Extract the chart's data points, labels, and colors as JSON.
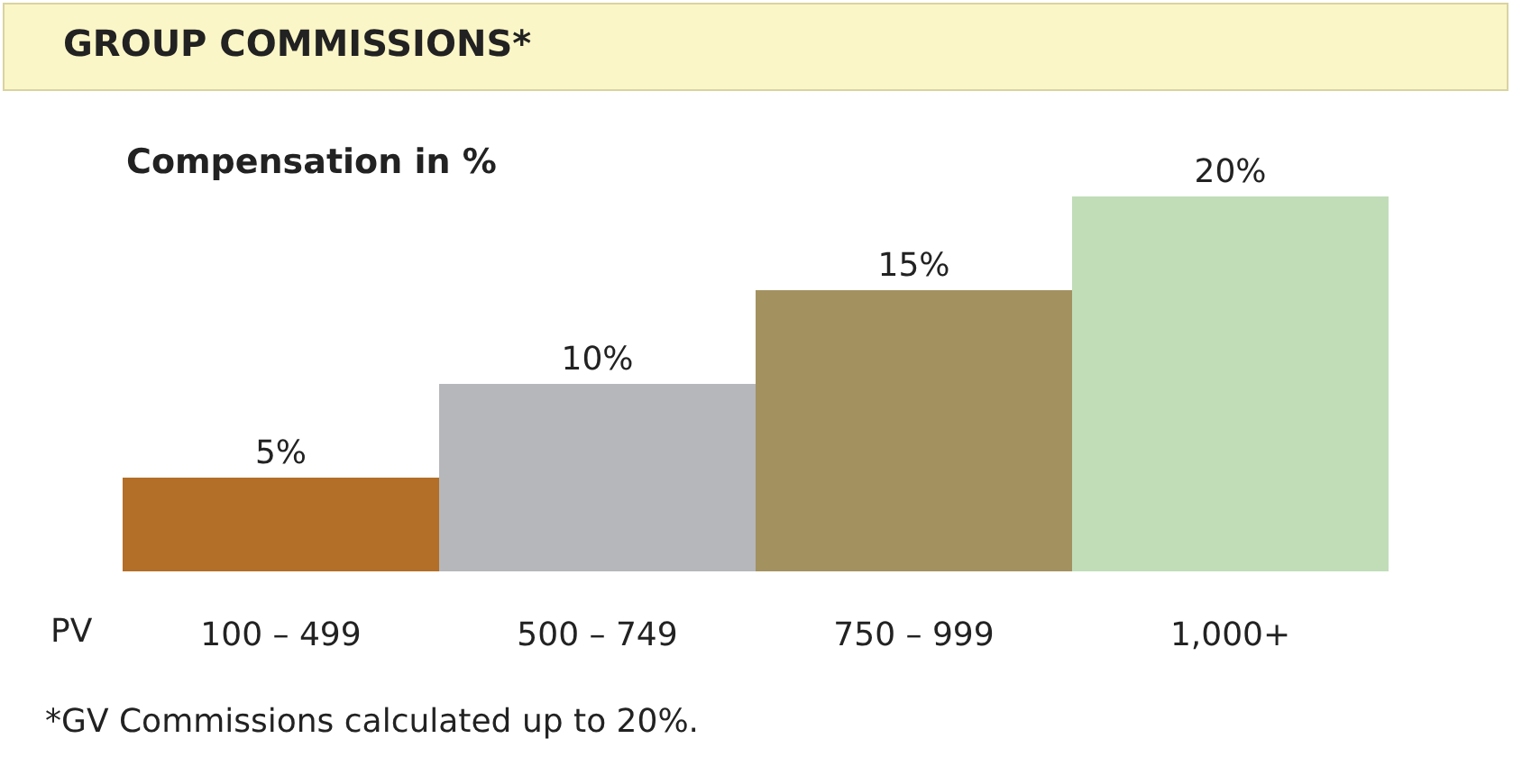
{
  "chart_data": {
    "type": "bar",
    "title": "GROUP COMMISSIONS*",
    "subtitle": "Compensation in %",
    "xlabel": "PV",
    "categories": [
      "100 – 499",
      "500 – 749",
      "750 – 999",
      "1,000+"
    ],
    "values": [
      5,
      10,
      15,
      20
    ],
    "colors": [
      "#b36f27",
      "#b6b7ba",
      "#a39160",
      "#c0ddb8"
    ],
    "value_labels": [
      "5%",
      "10%",
      "15%",
      "20%"
    ],
    "annotations": [
      "*GV Commissions calculated up to 20%."
    ],
    "legend": false
  }
}
